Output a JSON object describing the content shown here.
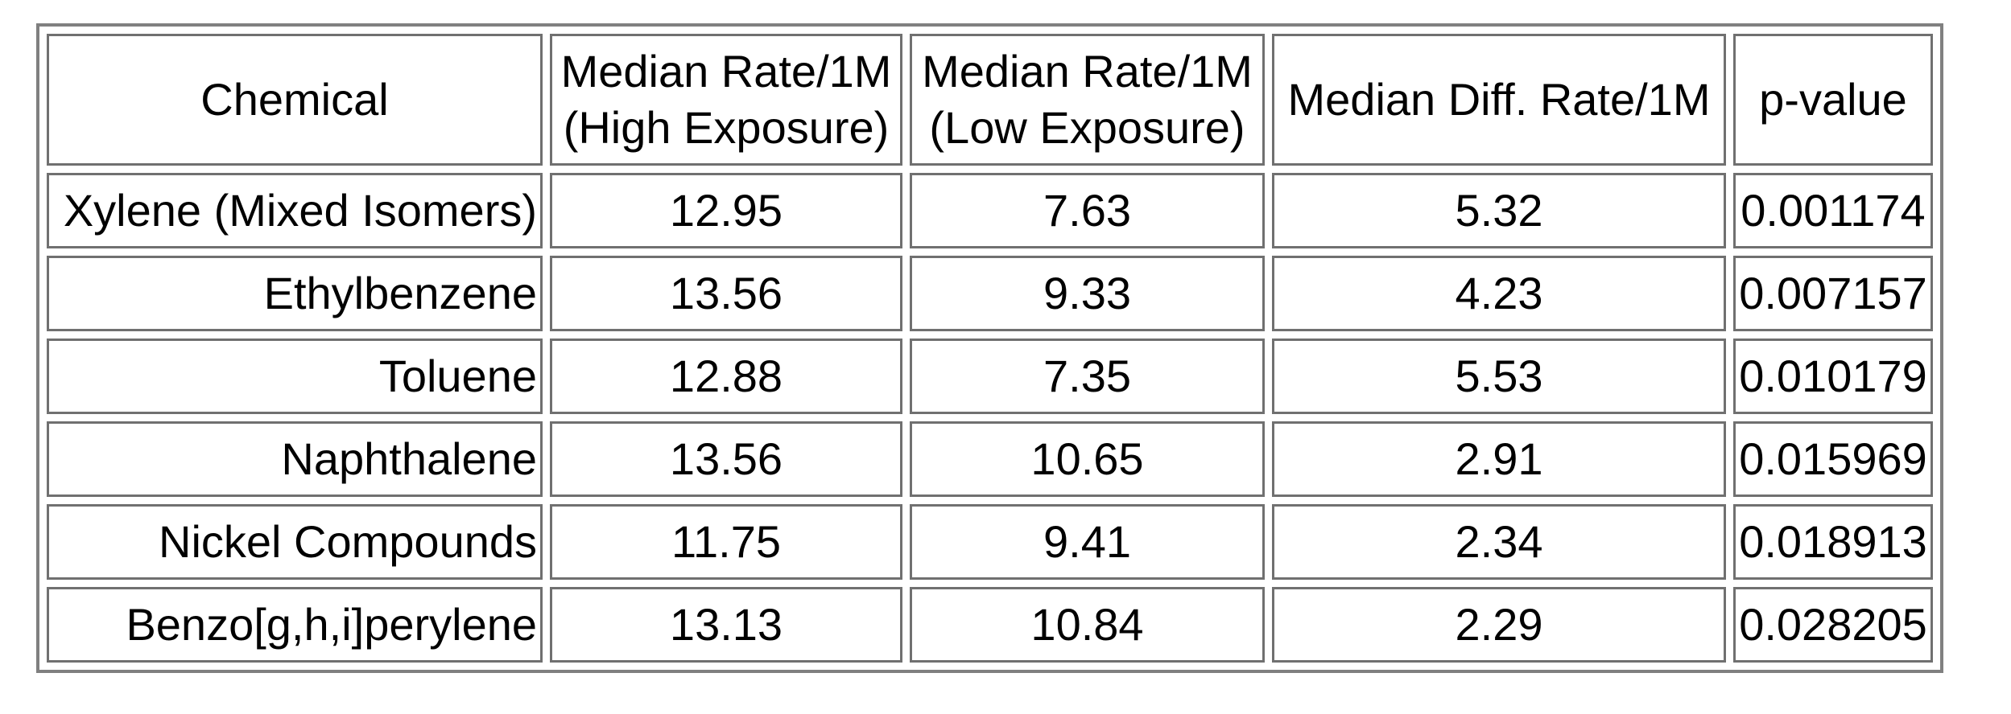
{
  "table": {
    "header": [
      "Chemical",
      "Median Rate/1M (High Exposure)",
      "Median Rate/1M (Low Exposure)",
      "Median Diff. Rate/1M",
      "p-value"
    ],
    "rows": [
      [
        "Xylene (Mixed Isomers)",
        12.95,
        7.63,
        5.32,
        0.001174
      ],
      [
        "Ethylbenzene",
        13.56,
        9.33,
        4.23,
        0.007157
      ],
      [
        "Toluene",
        12.88,
        7.35,
        5.53,
        0.010179
      ],
      [
        "Naphthalene",
        13.56,
        10.65,
        2.91,
        0.015969
      ],
      [
        "Nickel Compounds",
        11.75,
        9.41,
        2.34,
        0.018913
      ],
      [
        "Benzo[g,h,i]perylene",
        13.13,
        10.84,
        2.29,
        0.028205
      ]
    ]
  }
}
